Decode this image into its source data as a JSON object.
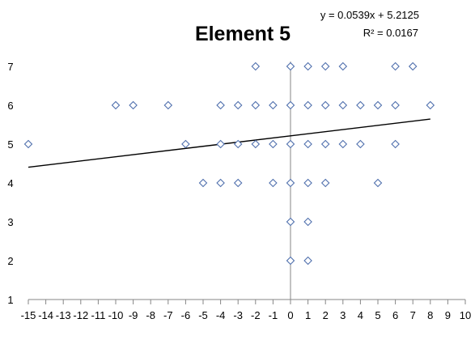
{
  "chart_data": {
    "type": "scatter",
    "title": "Element 5",
    "xlabel": "",
    "ylabel": "",
    "xlim": [
      -15,
      10
    ],
    "ylim": [
      1,
      7
    ],
    "x_ticks": [
      -15,
      -14,
      -13,
      -12,
      -11,
      -10,
      -9,
      -8,
      -7,
      -6,
      -5,
      -4,
      -3,
      -2,
      -1,
      0,
      1,
      2,
      3,
      4,
      5,
      6,
      7,
      8,
      9,
      10
    ],
    "y_ticks": [
      1,
      2,
      3,
      4,
      5,
      6,
      7
    ],
    "grid": false,
    "legend": "none",
    "marker": "diamond-open",
    "marker_color": "#4f6fad",
    "trendline": {
      "type": "linear",
      "slope": 0.0539,
      "intercept": 5.2125,
      "x_range": [
        -15,
        8
      ],
      "equation_label": "y = 0.0539x + 5.2125",
      "r2_label": "R² = 0.0167",
      "color": "#000000"
    },
    "points": [
      {
        "x": -15,
        "y": 5
      },
      {
        "x": -10,
        "y": 6
      },
      {
        "x": -9,
        "y": 6
      },
      {
        "x": -7,
        "y": 6
      },
      {
        "x": -4,
        "y": 6
      },
      {
        "x": -3,
        "y": 6
      },
      {
        "x": -2,
        "y": 6
      },
      {
        "x": -1,
        "y": 6
      },
      {
        "x": 0,
        "y": 6
      },
      {
        "x": 1,
        "y": 6
      },
      {
        "x": 2,
        "y": 6
      },
      {
        "x": 3,
        "y": 6
      },
      {
        "x": 4,
        "y": 6
      },
      {
        "x": 5,
        "y": 6
      },
      {
        "x": 6,
        "y": 6
      },
      {
        "x": 8,
        "y": 6
      },
      {
        "x": -2,
        "y": 7
      },
      {
        "x": 0,
        "y": 7
      },
      {
        "x": 1,
        "y": 7
      },
      {
        "x": 2,
        "y": 7
      },
      {
        "x": 3,
        "y": 7
      },
      {
        "x": 6,
        "y": 7
      },
      {
        "x": 7,
        "y": 7
      },
      {
        "x": -6,
        "y": 5
      },
      {
        "x": -4,
        "y": 5
      },
      {
        "x": -3,
        "y": 5
      },
      {
        "x": -2,
        "y": 5
      },
      {
        "x": -1,
        "y": 5
      },
      {
        "x": 0,
        "y": 5
      },
      {
        "x": 1,
        "y": 5
      },
      {
        "x": 2,
        "y": 5
      },
      {
        "x": 3,
        "y": 5
      },
      {
        "x": 4,
        "y": 5
      },
      {
        "x": 6,
        "y": 5
      },
      {
        "x": -5,
        "y": 4
      },
      {
        "x": -4,
        "y": 4
      },
      {
        "x": -3,
        "y": 4
      },
      {
        "x": -1,
        "y": 4
      },
      {
        "x": 0,
        "y": 4
      },
      {
        "x": 1,
        "y": 4
      },
      {
        "x": 2,
        "y": 4
      },
      {
        "x": 5,
        "y": 4
      },
      {
        "x": 0,
        "y": 3
      },
      {
        "x": 1,
        "y": 3
      },
      {
        "x": 0,
        "y": 2
      },
      {
        "x": 1,
        "y": 2
      }
    ]
  }
}
